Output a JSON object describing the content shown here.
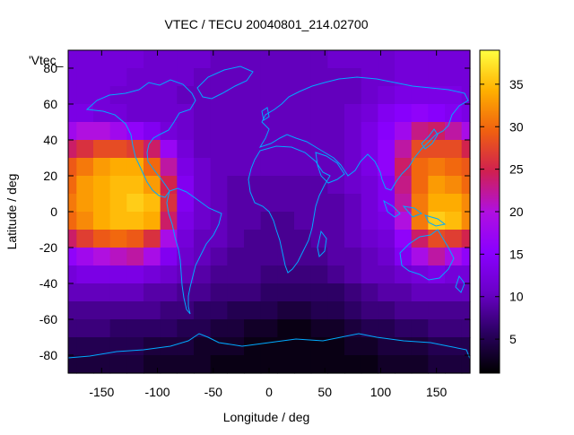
{
  "chart_data": {
    "type": "heatmap",
    "title": "VTEC / TECU 20040801_214.02700",
    "xlabel": "Longitude / deg",
    "ylabel": "Latitude / deg",
    "series_label": "'Vtec_",
    "xlim": [
      -180,
      180
    ],
    "ylim": [
      -90,
      90
    ],
    "x_ticks": [
      -150,
      -100,
      -50,
      0,
      50,
      100,
      150
    ],
    "y_ticks": [
      -80,
      -60,
      -40,
      -20,
      0,
      20,
      40,
      60,
      80
    ],
    "colorbar": {
      "range": [
        1,
        39
      ],
      "ticks": [
        5,
        10,
        15,
        20,
        25,
        30,
        35
      ],
      "palette": [
        "#000000",
        "#2a0060",
        "#6a00c8",
        "#8a00ff",
        "#b010e0",
        "#d02050",
        "#f06010",
        "#ffb000",
        "#ffff40"
      ]
    },
    "grid": false,
    "longitudes": [
      -180,
      -165,
      -150,
      -135,
      -120,
      -105,
      -90,
      -75,
      -60,
      -45,
      -30,
      -15,
      0,
      15,
      30,
      45,
      60,
      75,
      90,
      105,
      120,
      135,
      150,
      165,
      180
    ],
    "latitudes": [
      85,
      75,
      65,
      55,
      45,
      35,
      25,
      15,
      5,
      -5,
      -15,
      -25,
      -35,
      -45,
      -55,
      -65,
      -75,
      -85
    ],
    "values": [
      [
        12,
        12,
        12,
        12,
        12,
        11,
        11,
        11,
        11,
        10,
        10,
        10,
        10,
        10,
        10,
        10,
        11,
        11,
        11,
        11,
        12,
        12,
        12,
        12,
        12
      ],
      [
        12,
        12,
        12,
        12,
        11,
        11,
        11,
        11,
        10,
        10,
        10,
        10,
        10,
        10,
        10,
        10,
        10,
        10,
        11,
        11,
        12,
        12,
        12,
        12,
        12
      ],
      [
        12,
        12,
        12,
        11,
        11,
        11,
        11,
        10,
        10,
        10,
        10,
        10,
        10,
        10,
        10,
        10,
        10,
        10,
        11,
        12,
        13,
        13,
        13,
        13,
        12
      ],
      [
        13,
        13,
        12,
        12,
        11,
        11,
        11,
        11,
        10,
        10,
        10,
        10,
        10,
        10,
        10,
        10,
        10,
        11,
        12,
        14,
        15,
        16,
        15,
        14,
        13
      ],
      [
        18,
        20,
        20,
        18,
        16,
        14,
        12,
        11,
        10,
        10,
        10,
        10,
        10,
        10,
        10,
        10,
        10,
        11,
        13,
        15,
        18,
        23,
        24,
        22,
        19
      ],
      [
        24,
        26,
        28,
        28,
        27,
        24,
        17,
        12,
        10,
        10,
        10,
        10,
        10,
        10,
        10,
        10,
        10,
        11,
        13,
        16,
        22,
        28,
        28,
        28,
        25
      ],
      [
        29,
        31,
        33,
        34,
        34,
        30,
        22,
        13,
        11,
        10,
        10,
        10,
        10,
        10,
        10,
        10,
        10,
        11,
        13,
        16,
        24,
        30,
        31,
        30,
        29
      ],
      [
        30,
        33,
        34,
        35,
        35,
        33,
        25,
        14,
        11,
        10,
        9,
        9,
        9,
        9,
        9,
        9,
        10,
        11,
        12,
        14,
        23,
        30,
        33,
        32,
        30
      ],
      [
        31,
        33,
        34,
        35,
        36,
        35,
        26,
        14,
        11,
        10,
        9,
        9,
        9,
        9,
        9,
        9,
        9,
        10,
        12,
        14,
        22,
        31,
        34,
        34,
        32
      ],
      [
        30,
        32,
        34,
        35,
        35,
        34,
        24,
        13,
        11,
        10,
        9,
        9,
        8,
        8,
        9,
        9,
        9,
        10,
        12,
        13,
        20,
        31,
        36,
        35,
        32
      ],
      [
        24,
        27,
        29,
        30,
        29,
        26,
        19,
        12,
        10,
        10,
        9,
        8,
        8,
        8,
        8,
        9,
        9,
        10,
        11,
        12,
        16,
        24,
        28,
        27,
        25
      ],
      [
        16,
        18,
        20,
        21,
        22,
        19,
        14,
        11,
        10,
        9,
        8,
        8,
        8,
        8,
        8,
        8,
        9,
        9,
        10,
        11,
        14,
        19,
        22,
        19,
        16
      ],
      [
        12,
        13,
        13,
        13,
        13,
        12,
        11,
        10,
        9,
        8,
        8,
        8,
        7,
        7,
        7,
        7,
        8,
        9,
        10,
        10,
        11,
        12,
        13,
        12,
        12
      ],
      [
        10,
        10,
        10,
        10,
        10,
        9,
        9,
        8,
        8,
        7,
        7,
        7,
        6,
        6,
        6,
        6,
        6,
        7,
        8,
        9,
        9,
        10,
        10,
        10,
        10
      ],
      [
        8,
        8,
        8,
        8,
        8,
        8,
        7,
        7,
        6,
        6,
        5,
        5,
        5,
        4,
        4,
        5,
        5,
        6,
        7,
        7,
        8,
        8,
        8,
        8,
        8
      ],
      [
        7,
        7,
        7,
        6,
        6,
        6,
        6,
        5,
        5,
        4,
        4,
        3,
        3,
        2,
        2,
        3,
        3,
        4,
        5,
        5,
        6,
        6,
        7,
        7,
        7
      ],
      [
        5,
        5,
        5,
        5,
        5,
        4,
        4,
        4,
        3,
        3,
        3,
        2,
        2,
        2,
        2,
        2,
        2,
        3,
        3,
        4,
        4,
        4,
        5,
        5,
        5
      ],
      [
        4,
        4,
        4,
        4,
        4,
        3,
        3,
        3,
        3,
        2,
        2,
        2,
        2,
        2,
        2,
        2,
        2,
        2,
        2,
        3,
        3,
        3,
        4,
        4,
        4
      ]
    ]
  }
}
